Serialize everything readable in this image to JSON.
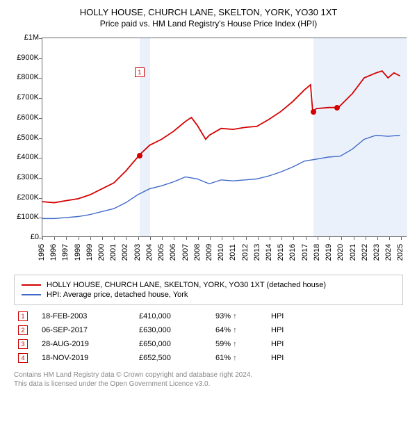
{
  "title": "HOLLY HOUSE, CHURCH LANE, SKELTON, YORK, YO30 1XT",
  "subtitle": "Price paid vs. HM Land Registry's House Price Index (HPI)",
  "chart": {
    "type": "line",
    "background_color": "#ffffff",
    "shade_color": "#eaf1fb",
    "border_color": "#666666",
    "x_axis": {
      "min": 1995,
      "max": 2025.5,
      "ticks": [
        1995,
        1996,
        1997,
        1998,
        1999,
        2000,
        2001,
        2002,
        2003,
        2004,
        2005,
        2006,
        2007,
        2008,
        2009,
        2010,
        2011,
        2012,
        2013,
        2014,
        2015,
        2016,
        2017,
        2018,
        2019,
        2020,
        2021,
        2022,
        2023,
        2024,
        2025
      ]
    },
    "y_axis": {
      "min": 0,
      "max": 1000000,
      "ticks": [
        {
          "v": 0,
          "label": "£0"
        },
        {
          "v": 100000,
          "label": "£100K"
        },
        {
          "v": 200000,
          "label": "£200K"
        },
        {
          "v": 300000,
          "label": "£300K"
        },
        {
          "v": 400000,
          "label": "£400K"
        },
        {
          "v": 500000,
          "label": "£500K"
        },
        {
          "v": 600000,
          "label": "£600K"
        },
        {
          "v": 700000,
          "label": "£700K"
        },
        {
          "v": 800000,
          "label": "£800K"
        },
        {
          "v": 900000,
          "label": "£900K"
        },
        {
          "v": 1000000,
          "label": "£1M"
        }
      ]
    },
    "shaded_ranges": [
      {
        "from": 2003.13,
        "to": 2004.0
      },
      {
        "from": 2017.68,
        "to": 2025.5
      }
    ],
    "series": [
      {
        "name": "HOLLY HOUSE, CHURCH LANE, SKELTON, YORK, YO30 1XT (detached house)",
        "color": "#d40000",
        "width": 1.8,
        "points": [
          [
            1995,
            175000
          ],
          [
            1996,
            170000
          ],
          [
            1997,
            180000
          ],
          [
            1998,
            190000
          ],
          [
            1999,
            210000
          ],
          [
            2000,
            240000
          ],
          [
            2001,
            270000
          ],
          [
            2002,
            330000
          ],
          [
            2003,
            400000
          ],
          [
            2003.13,
            410000
          ],
          [
            2004,
            460000
          ],
          [
            2005,
            490000
          ],
          [
            2006,
            530000
          ],
          [
            2007,
            580000
          ],
          [
            2007.5,
            600000
          ],
          [
            2008,
            560000
          ],
          [
            2008.7,
            490000
          ],
          [
            2009,
            510000
          ],
          [
            2010,
            545000
          ],
          [
            2011,
            540000
          ],
          [
            2012,
            550000
          ],
          [
            2013,
            555000
          ],
          [
            2014,
            590000
          ],
          [
            2015,
            630000
          ],
          [
            2016,
            680000
          ],
          [
            2017,
            740000
          ],
          [
            2017.5,
            765000
          ],
          [
            2017.68,
            630000
          ],
          [
            2018,
            645000
          ],
          [
            2019,
            650000
          ],
          [
            2019.66,
            650000
          ],
          [
            2019.88,
            652500
          ],
          [
            2020,
            660000
          ],
          [
            2021,
            720000
          ],
          [
            2022,
            800000
          ],
          [
            2023,
            825000
          ],
          [
            2023.5,
            835000
          ],
          [
            2024,
            800000
          ],
          [
            2024.5,
            825000
          ],
          [
            2025,
            810000
          ]
        ]
      },
      {
        "name": "HPI: Average price, detached house, York",
        "color": "#4169c8",
        "width": 1.4,
        "points": [
          [
            1995,
            90000
          ],
          [
            1996,
            90000
          ],
          [
            1997,
            95000
          ],
          [
            1998,
            100000
          ],
          [
            1999,
            110000
          ],
          [
            2000,
            125000
          ],
          [
            2001,
            140000
          ],
          [
            2002,
            170000
          ],
          [
            2003,
            210000
          ],
          [
            2004,
            240000
          ],
          [
            2005,
            255000
          ],
          [
            2006,
            275000
          ],
          [
            2007,
            300000
          ],
          [
            2008,
            290000
          ],
          [
            2009,
            265000
          ],
          [
            2010,
            285000
          ],
          [
            2011,
            280000
          ],
          [
            2012,
            285000
          ],
          [
            2013,
            290000
          ],
          [
            2014,
            305000
          ],
          [
            2015,
            325000
          ],
          [
            2016,
            350000
          ],
          [
            2017,
            380000
          ],
          [
            2018,
            390000
          ],
          [
            2019,
            400000
          ],
          [
            2020,
            405000
          ],
          [
            2021,
            440000
          ],
          [
            2022,
            490000
          ],
          [
            2023,
            510000
          ],
          [
            2024,
            505000
          ],
          [
            2025,
            510000
          ]
        ]
      }
    ],
    "sale_markers": [
      {
        "num": "1",
        "x": 2003.13,
        "y": 410000,
        "label_y_offset": -120,
        "dot": true
      },
      {
        "num": "2",
        "x": 2017.68,
        "y": 630000,
        "label_y_offset": -215,
        "label_x_offset": -12,
        "dot": true
      },
      {
        "num": "3",
        "x": 2019.66,
        "y": 650000,
        "label_y_offset": 0,
        "label_x_offset": 0,
        "hidden_box": true,
        "dot": true
      },
      {
        "num": "4",
        "x": 2019.88,
        "y": 652500,
        "label_y_offset": -224,
        "label_x_offset": 8,
        "dot": false
      }
    ]
  },
  "legend": [
    {
      "color": "#d40000",
      "label": "HOLLY HOUSE, CHURCH LANE, SKELTON, YORK, YO30 1XT (detached house)"
    },
    {
      "color": "#4169c8",
      "label": "HPI: Average price, detached house, York"
    }
  ],
  "sales": [
    {
      "num": "1",
      "date": "18-FEB-2003",
      "price": "£410,000",
      "pct": "93%",
      "dir": "↑",
      "ref": "HPI"
    },
    {
      "num": "2",
      "date": "06-SEP-2017",
      "price": "£630,000",
      "pct": "64%",
      "dir": "↑",
      "ref": "HPI"
    },
    {
      "num": "3",
      "date": "28-AUG-2019",
      "price": "£650,000",
      "pct": "59%",
      "dir": "↑",
      "ref": "HPI"
    },
    {
      "num": "4",
      "date": "18-NOV-2019",
      "price": "£652,500",
      "pct": "61%",
      "dir": "↑",
      "ref": "HPI"
    }
  ],
  "footer": {
    "line1": "Contains HM Land Registry data © Crown copyright and database right 2024.",
    "line2": "This data is licensed under the Open Government Licence v3.0."
  }
}
